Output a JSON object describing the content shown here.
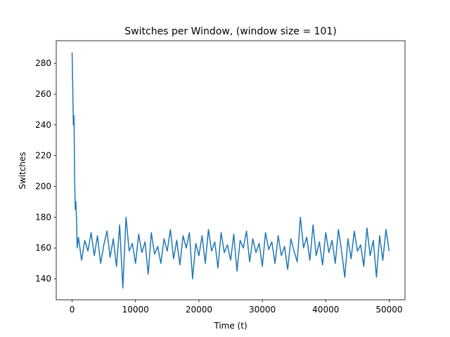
{
  "chart_data": {
    "type": "line",
    "title": "Switches per Window, (window size = 101)",
    "xlabel": "Time (t)",
    "ylabel": "Switches",
    "color": "#1f77b4",
    "grid": false,
    "x": [
      0,
      100,
      200,
      300,
      400,
      500,
      600,
      700,
      800,
      1000,
      1500,
      2000,
      2500,
      3000,
      3500,
      4000,
      4500,
      5000,
      5500,
      6000,
      6500,
      7000,
      7500,
      8000,
      8500,
      9000,
      9500,
      10000,
      10500,
      11000,
      11500,
      12000,
      12500,
      13000,
      13500,
      14000,
      14500,
      15000,
      15500,
      16000,
      16500,
      17000,
      17500,
      18000,
      18500,
      19000,
      19500,
      20000,
      20500,
      21000,
      21500,
      22000,
      22500,
      23000,
      23500,
      24000,
      24500,
      25000,
      25500,
      26000,
      26500,
      27000,
      27500,
      28000,
      28500,
      29000,
      29500,
      30000,
      30500,
      31000,
      31500,
      32000,
      32500,
      33000,
      33500,
      34000,
      34500,
      35000,
      35500,
      36000,
      36500,
      37000,
      37500,
      38000,
      38500,
      39000,
      39500,
      40000,
      40500,
      41000,
      41500,
      42000,
      42500,
      43000,
      43500,
      44000,
      44500,
      45000,
      45500,
      46000,
      46500,
      47000,
      47500,
      48000,
      48500,
      49000,
      49500,
      50000
    ],
    "values": [
      287,
      265,
      240,
      246,
      205,
      185,
      190,
      178,
      160,
      167,
      152,
      165,
      158,
      170,
      155,
      168,
      150,
      162,
      171,
      154,
      166,
      148,
      175,
      134,
      180,
      158,
      163,
      150,
      169,
      157,
      164,
      143,
      170,
      156,
      161,
      150,
      166,
      158,
      172,
      153,
      165,
      149,
      168,
      160,
      170,
      140,
      163,
      155,
      168,
      150,
      172,
      158,
      164,
      147,
      170,
      157,
      162,
      152,
      169,
      145,
      165,
      160,
      171,
      151,
      166,
      157,
      163,
      148,
      170,
      159,
      164,
      150,
      168,
      155,
      161,
      146,
      166,
      158,
      151,
      180,
      160,
      167,
      152,
      175,
      155,
      164,
      149,
      170,
      157,
      165,
      150,
      172,
      158,
      141,
      166,
      153,
      171,
      158,
      162,
      148,
      173,
      155,
      165,
      141,
      168,
      152,
      172,
      158
    ],
    "xlim": [
      -2500,
      52500
    ],
    "ylim": [
      126.35,
      294.65
    ],
    "xticks": [
      0,
      10000,
      20000,
      30000,
      40000,
      50000
    ],
    "yticks": [
      140,
      160,
      180,
      200,
      220,
      240,
      260,
      280
    ]
  }
}
